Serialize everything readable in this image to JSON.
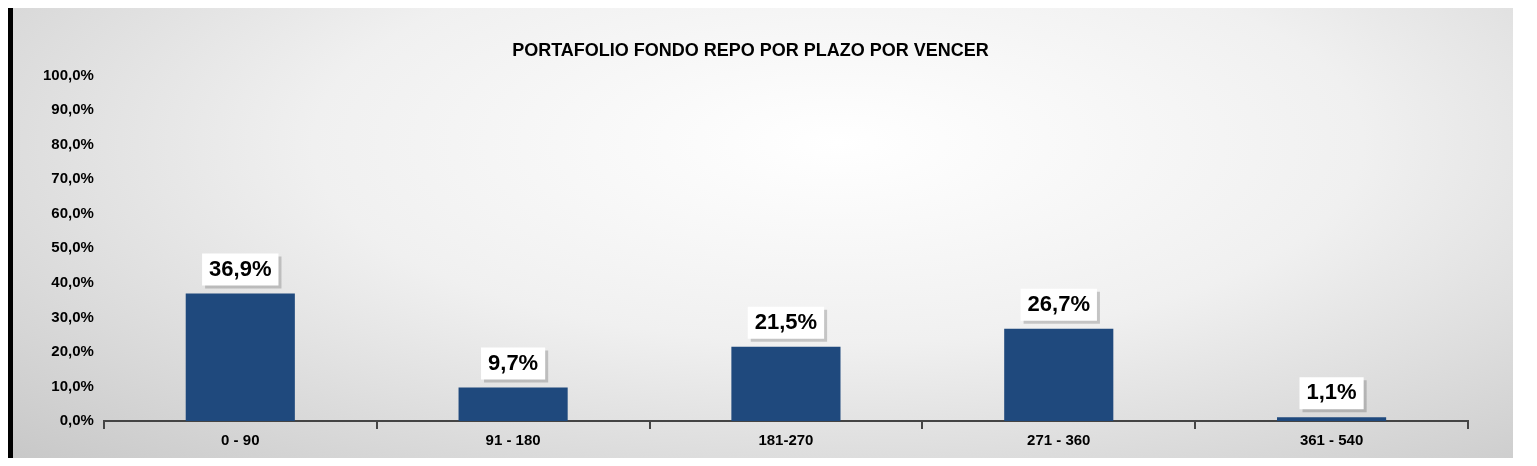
{
  "chart_data": {
    "type": "bar",
    "title": "PORTAFOLIO FONDO REPO POR PLAZO POR VENCER",
    "categories": [
      "0 - 90",
      "91 - 180",
      "181-270",
      "271 - 360",
      "361 - 540"
    ],
    "values": [
      36.9,
      9.7,
      21.5,
      26.7,
      1.1
    ],
    "value_labels": [
      "36,9%",
      "9,7%",
      "21,5%",
      "26,7%",
      "1,1%"
    ],
    "color": "#1f497d",
    "ylim": [
      0,
      100
    ],
    "yticks": [
      {
        "value": 0,
        "label": "0,0%"
      },
      {
        "value": 10,
        "label": "10,0%"
      },
      {
        "value": 20,
        "label": "20,0%"
      },
      {
        "value": 30,
        "label": "30,0%"
      },
      {
        "value": 40,
        "label": "40,0%"
      },
      {
        "value": 50,
        "label": "50,0%"
      },
      {
        "value": 60,
        "label": "60,0%"
      },
      {
        "value": 70,
        "label": "70,0%"
      },
      {
        "value": 80,
        "label": "80,0%"
      },
      {
        "value": 90,
        "label": "90,0%"
      },
      {
        "value": 100,
        "label": "100,0%"
      }
    ],
    "grid": false,
    "legend": false
  }
}
